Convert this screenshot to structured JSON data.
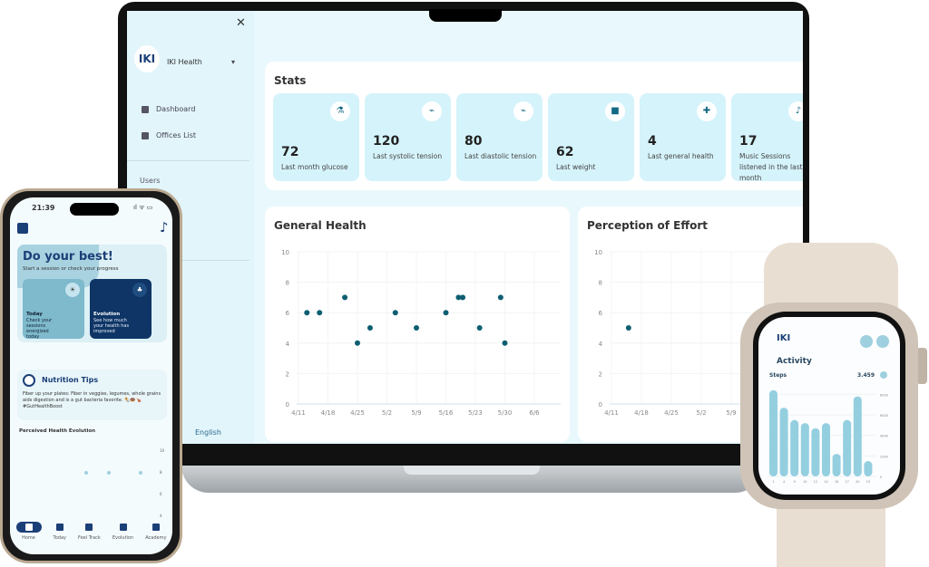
{
  "laptop": {
    "sidebar": {
      "brand": "IKI Health",
      "logo_text": "IKI",
      "items": [
        {
          "label": "Dashboard",
          "icon": "plus-square-icon"
        },
        {
          "label": "Offices List",
          "icon": "building-icon"
        }
      ],
      "section": "Users",
      "language": "English"
    },
    "stats": {
      "title": "Stats",
      "tiles": [
        {
          "value": "72",
          "label": "Last month glucose",
          "icon": "glucose-meter-icon",
          "glyph": "⚗"
        },
        {
          "value": "120",
          "label": "Last systolic tension",
          "icon": "heart-monitor-icon",
          "glyph": "⌁"
        },
        {
          "value": "80",
          "label": "Last diastolic tension",
          "icon": "heart-monitor-icon",
          "glyph": "⌁"
        },
        {
          "value": "62",
          "label": "Last weight",
          "icon": "scale-icon",
          "glyph": "■"
        },
        {
          "value": "4",
          "label": "Last general health",
          "icon": "shield-plus-icon",
          "glyph": "✚"
        },
        {
          "value": "17",
          "label": "Music Sessions listened in the last month",
          "icon": "music-note-icon",
          "glyph": "♪"
        }
      ]
    },
    "charts": {
      "general": {
        "title": "General Health"
      },
      "effort": {
        "title": "Perception of Effort"
      }
    }
  },
  "chart_data": [
    {
      "type": "scatter",
      "title": "General Health",
      "ylim": [
        0,
        10
      ],
      "yticks": [
        "0",
        "2",
        "4",
        "6",
        "8",
        "10"
      ],
      "xticks": [
        "4/11",
        "4/18",
        "4/25",
        "5/2",
        "5/9",
        "5/16",
        "5/23",
        "5/30",
        "6/6"
      ],
      "points": [
        [
          "4/13",
          6
        ],
        [
          "4/16",
          6
        ],
        [
          "4/22",
          7
        ],
        [
          "4/25",
          4
        ],
        [
          "4/28",
          5
        ],
        [
          "5/4",
          6
        ],
        [
          "5/9",
          5
        ],
        [
          "5/16",
          6
        ],
        [
          "5/19",
          7
        ],
        [
          "5/20",
          7
        ],
        [
          "5/24",
          5
        ],
        [
          "5/29",
          7
        ],
        [
          "5/30",
          4
        ]
      ],
      "color": "#0e5e72"
    },
    {
      "type": "scatter",
      "title": "Perception of Effort",
      "ylim": [
        0,
        10
      ],
      "yticks": [
        "0",
        "2",
        "4",
        "6",
        "8",
        "10"
      ],
      "xticks": [
        "4/11",
        "4/18",
        "4/25",
        "5/2",
        "5/9"
      ],
      "points": [
        [
          "4/15",
          5
        ]
      ],
      "color": "#0e5e72"
    },
    {
      "type": "bar",
      "title": "Activity",
      "subtitle": "Steps",
      "total": "3.459",
      "categories": [
        "1",
        "4",
        "9",
        "10",
        "12",
        "14",
        "16",
        "17",
        "20",
        "23"
      ],
      "values": [
        8400,
        6700,
        5500,
        5200,
        4700,
        5200,
        2200,
        5500,
        7800,
        1500
      ],
      "yticks": [
        "0",
        "2000",
        "4000",
        "6000",
        "8000"
      ],
      "ylim": [
        0,
        9000
      ],
      "color": "#94cfe0"
    }
  ],
  "phone": {
    "time": "21:39",
    "hero": {
      "title": "Do your best!",
      "subtitle": "Start a session or check your progress"
    },
    "cards": [
      {
        "title": "Today",
        "text": "Check your sessions energized today"
      },
      {
        "title": "Evolution",
        "text": "See how much your health has improved"
      }
    ],
    "tips": {
      "title": "Nutrition Tips",
      "text": "Fiber up your plates: Fiber in veggies, legumes, whole grains aids digestion and is a gut bacteria favorite. 🌯🍩🍗 #GutHealthBoost"
    },
    "evolution": {
      "title": "Perceived Health Evolution",
      "yticks": [
        "10",
        "8",
        "6",
        "4"
      ]
    },
    "nav": [
      {
        "label": "Home",
        "icon": "home-icon"
      },
      {
        "label": "Today",
        "icon": "sunrise-icon"
      },
      {
        "label": "Feel Track",
        "icon": "journal-icon"
      },
      {
        "label": "Evolution",
        "icon": "tree-icon"
      },
      {
        "label": "Academy",
        "icon": "book-icon"
      }
    ]
  },
  "watch": {
    "title": "Activity",
    "logo_text": "IKI"
  }
}
